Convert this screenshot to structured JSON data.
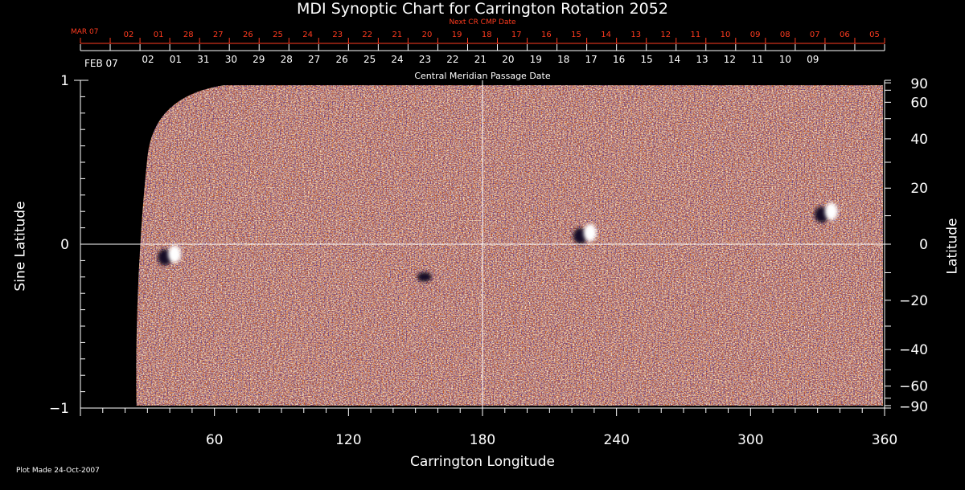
{
  "title": "MDI Synoptic Chart for Carrington Rotation 2052",
  "top_red_caption": "Next CR CMP Date",
  "cmp_caption": "Central Meridian Passage Date",
  "plot_made": "Plot Made 24-Oct-2007",
  "colors": {
    "background": "#000000",
    "axis": "#ffffff",
    "red_axis": "#ff3b1f",
    "field_base": "#c85a10",
    "positive_polarity": "#ffffff",
    "negative_polarity": "#140a28"
  },
  "chart_data": {
    "type": "heatmap",
    "description_note": "",
    "title": "MDI Synoptic Chart for Carrington Rotation 2052",
    "xlabel": "Carrington Longitude",
    "ylabel_left": "Sine Latitude",
    "ylabel_right": "Latitude",
    "xlim": [
      0,
      360
    ],
    "ylim": [
      -1,
      1
    ],
    "x_ticks": [
      "60",
      "120",
      "180",
      "240",
      "300",
      "360"
    ],
    "x_tick_values": [
      60,
      120,
      180,
      240,
      300,
      360
    ],
    "y_left_ticks": [
      "1",
      "0",
      "−1"
    ],
    "y_left_tick_values": [
      1,
      0,
      -1
    ],
    "y_right_ticks": [
      "90",
      "60",
      "40",
      "20",
      "0",
      "−20",
      "−40",
      "−60",
      "−90"
    ],
    "y_right_tick_values": [
      90,
      60,
      40,
      20,
      0,
      -20,
      -40,
      -60,
      -90
    ],
    "grid": "crosshair at longitude 180 and sine latitude 0",
    "data_gap": {
      "from_longitude": 0,
      "to_longitude_at_equator": 28,
      "to_longitude_at_poles": 50
    },
    "active_regions": [
      {
        "longitude": 40,
        "sine_latitude": -0.07,
        "polarity": "mixed (white leading, dark following)"
      },
      {
        "longitude": 226,
        "sine_latitude": 0.06,
        "polarity": "mixed (dark west, white east)"
      },
      {
        "longitude": 154,
        "sine_latitude": -0.2,
        "polarity": "negative"
      },
      {
        "longitude": 334,
        "sine_latitude": 0.19,
        "polarity": "mixed"
      }
    ],
    "cmp_dates_white": {
      "first_label": "FEB 07",
      "labels": [
        "02",
        "01",
        "31",
        "30",
        "29",
        "28",
        "27",
        "26",
        "25",
        "24",
        "23",
        "22",
        "21",
        "20",
        "19",
        "18",
        "17",
        "16",
        "15",
        "14",
        "13",
        "12",
        "11",
        "10",
        "09"
      ]
    },
    "cmp_dates_red": {
      "first_label": "MAR 07",
      "labels": [
        "02",
        "01",
        "28",
        "27",
        "26",
        "25",
        "24",
        "23",
        "22",
        "21",
        "20",
        "19",
        "18",
        "17",
        "16",
        "15",
        "14",
        "13",
        "12",
        "11",
        "10",
        "09",
        "08",
        "07",
        "06",
        "05"
      ]
    }
  }
}
